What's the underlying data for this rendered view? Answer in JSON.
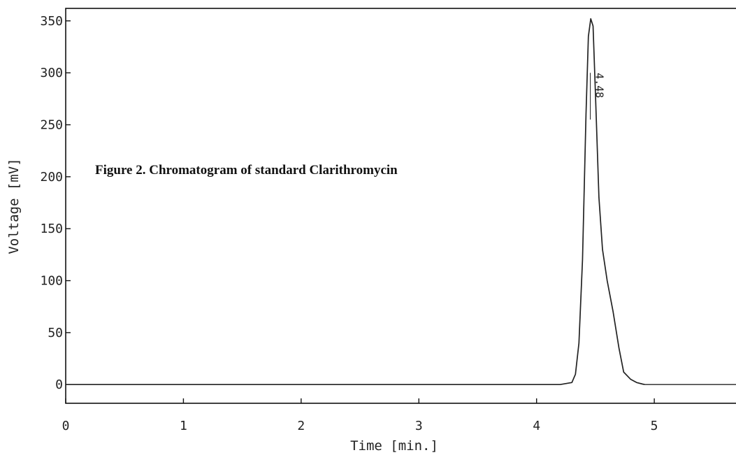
{
  "chart_data": {
    "type": "line",
    "title": "",
    "xlabel": "Time [min.]",
    "ylabel": "Voltage [mV]",
    "xlim": [
      0,
      5.7
    ],
    "ylim": [
      -18,
      362
    ],
    "x_ticks": [
      0,
      1,
      2,
      3,
      4,
      5
    ],
    "x_tick_labels": [
      "0",
      "1",
      "2",
      "3",
      "4",
      "5"
    ],
    "y_ticks": [
      0,
      50,
      100,
      150,
      200,
      250,
      300,
      350
    ],
    "y_tick_labels": [
      "0",
      "50",
      "100",
      "150",
      "200",
      "250",
      "300",
      "350"
    ],
    "grid": false,
    "annotation": "Figure 2. Chromatogram of standard Clarithromycin",
    "peak_label": "4.48",
    "peak_label_anchor": [
      4.48,
      300
    ],
    "series": [
      {
        "x": [
          0,
          4.2,
          4.3,
          4.33,
          4.36,
          4.39,
          4.42,
          4.44,
          4.46,
          4.48,
          4.5,
          4.53,
          4.56,
          4.6,
          4.65,
          4.7,
          4.74,
          4.8,
          4.85,
          4.9,
          4.92
        ],
        "y": [
          0,
          0,
          2,
          10,
          40,
          120,
          260,
          335,
          352,
          345,
          280,
          180,
          130,
          100,
          70,
          35,
          12,
          5,
          2,
          0.5,
          0
        ]
      },
      {
        "x": [
          4.92,
          5.7
        ],
        "y": [
          0,
          0
        ]
      }
    ]
  }
}
